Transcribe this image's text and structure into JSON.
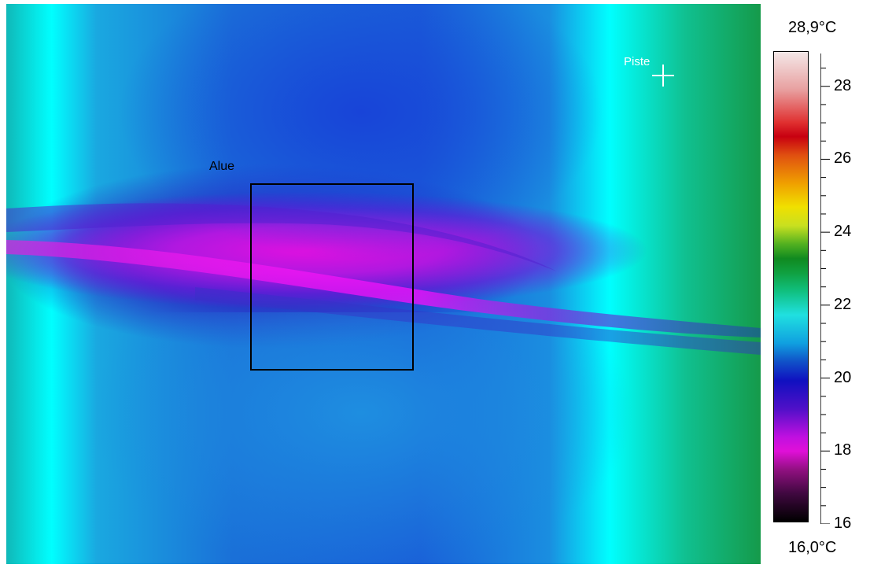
{
  "image": {
    "description_type": "thermal-camera-image",
    "palette": "rainbow-high-contrast"
  },
  "measurements": {
    "area_label": "Alue",
    "spot_label": "Piste"
  },
  "scale": {
    "max_label": "28,9°C",
    "min_label": "16,0°C",
    "max_value": 28.9,
    "min_value": 16.0,
    "ticks": [
      "28",
      "26",
      "24",
      "22",
      "20",
      "18",
      "16"
    ]
  }
}
